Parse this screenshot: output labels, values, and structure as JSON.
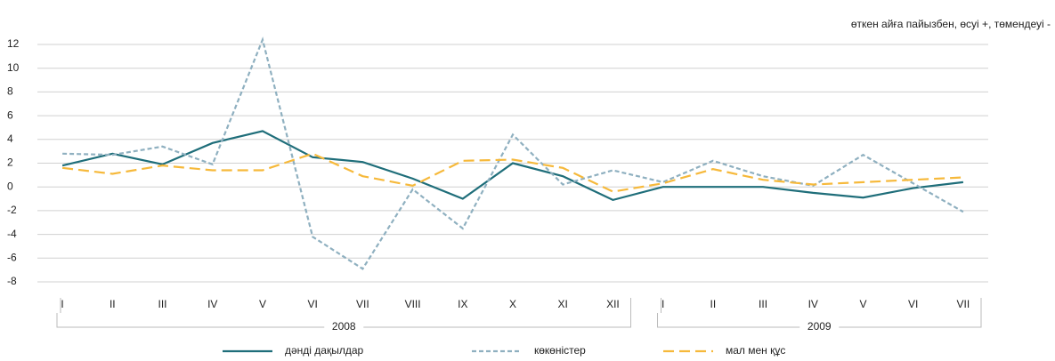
{
  "chart_data": {
    "type": "line",
    "note": "өткен айға пайызбен, өсуі +, төмендеуі -",
    "groups": [
      {
        "name": "2008",
        "categories": [
          "I",
          "II",
          "III",
          "IV",
          "V",
          "VI",
          "VII",
          "VIII",
          "IX",
          "X",
          "XI",
          "XII"
        ]
      },
      {
        "name": "2009",
        "categories": [
          "I",
          "II",
          "III",
          "IV",
          "V",
          "VI",
          "VII"
        ]
      }
    ],
    "series": [
      {
        "name": "дәнді дақылдар",
        "color": "#1f6e7a",
        "dash": "solid",
        "values": [
          1.8,
          2.8,
          1.9,
          3.7,
          4.7,
          2.5,
          2.1,
          0.7,
          -1.0,
          2.0,
          0.9,
          -1.1,
          0,
          0,
          0,
          -0.5,
          -0.9,
          -0.1,
          0.4
        ]
      },
      {
        "name": "көкөністер",
        "color": "#8fb0c0",
        "dash": "dotted",
        "values": [
          2.8,
          2.7,
          3.4,
          1.9,
          12.4,
          -4.2,
          -6.9,
          -0.2,
          -3.5,
          4.4,
          0.2,
          1.4,
          0.4,
          2.2,
          0.9,
          0.1,
          2.7,
          0.3,
          -2.1
        ]
      },
      {
        "name": "мал мен құс",
        "color": "#f6b93b",
        "dash": "dashed",
        "values": [
          1.6,
          1.1,
          1.8,
          1.4,
          1.4,
          2.8,
          0.9,
          0.1,
          2.2,
          2.3,
          1.6,
          -0.4,
          0.3,
          1.5,
          0.6,
          0.2,
          0.4,
          0.6,
          0.8
        ]
      }
    ],
    "ylim": [
      -8,
      12
    ],
    "yticks": [
      -8,
      -6,
      -4,
      -2,
      0,
      2,
      4,
      6,
      8,
      10,
      12
    ],
    "grid": true,
    "legend": "bottom"
  }
}
